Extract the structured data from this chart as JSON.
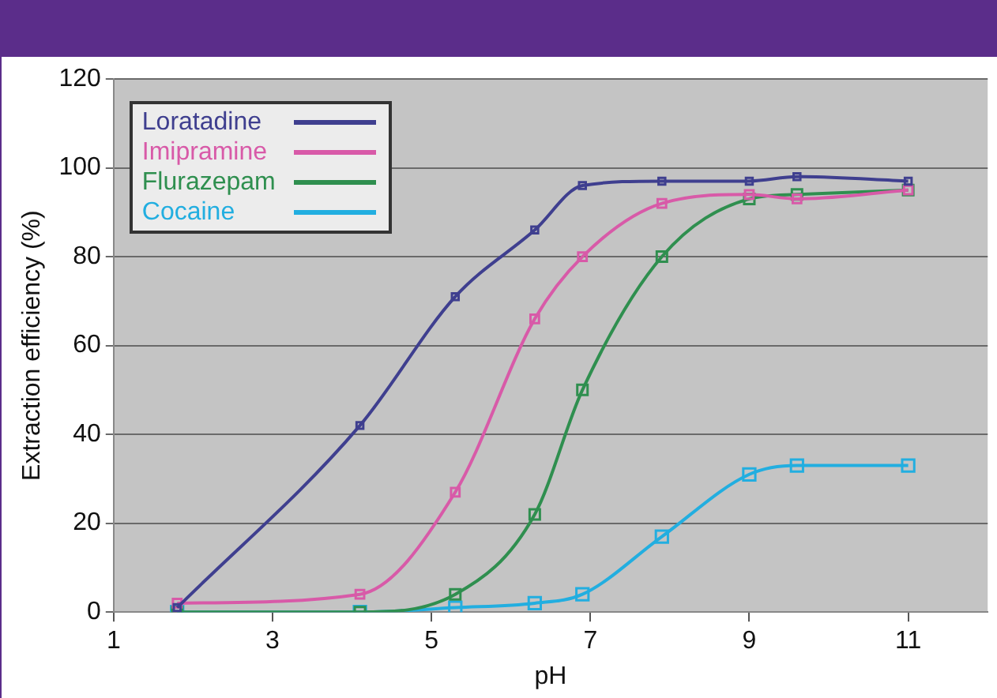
{
  "chart_data": {
    "type": "line",
    "xlabel": "pH",
    "ylabel": "Extraction efficiency (%)",
    "xlim": [
      1,
      12
    ],
    "xticks": [
      1,
      3,
      5,
      7,
      9,
      11
    ],
    "ylim": [
      0,
      120
    ],
    "yticks": [
      0,
      20,
      40,
      60,
      80,
      100,
      120
    ],
    "grid": "y",
    "legend": "top left",
    "marker": "square",
    "line_style": "solid",
    "series": [
      {
        "name": "Loratadine",
        "color": "#3f3f8f",
        "x": [
          1.8,
          4.1,
          5.3,
          6.3,
          6.9,
          7.9,
          9.0,
          9.6,
          11.0
        ],
        "values": [
          1,
          42,
          71,
          86,
          96,
          97,
          97,
          98,
          97
        ]
      },
      {
        "name": "Imipramine",
        "color": "#d85aa8",
        "x": [
          1.8,
          4.1,
          5.3,
          6.3,
          6.9,
          7.9,
          9.0,
          9.6,
          11.0
        ],
        "values": [
          2,
          4,
          27,
          66,
          80,
          92,
          94,
          93,
          95
        ]
      },
      {
        "name": "Flurazepam",
        "color": "#2f8f4f",
        "x": [
          1.8,
          4.1,
          5.3,
          6.3,
          6.9,
          7.9,
          9.0,
          9.6,
          11.0
        ],
        "values": [
          0,
          0,
          4,
          22,
          50,
          80,
          93,
          94,
          95
        ]
      },
      {
        "name": "Cocaine",
        "color": "#22aee0",
        "x": [
          1.8,
          4.1,
          5.3,
          6.3,
          6.9,
          7.9,
          9.0,
          9.6,
          11.0
        ],
        "values": [
          0,
          0,
          1,
          2,
          4,
          17,
          31,
          33,
          33
        ]
      }
    ]
  }
}
